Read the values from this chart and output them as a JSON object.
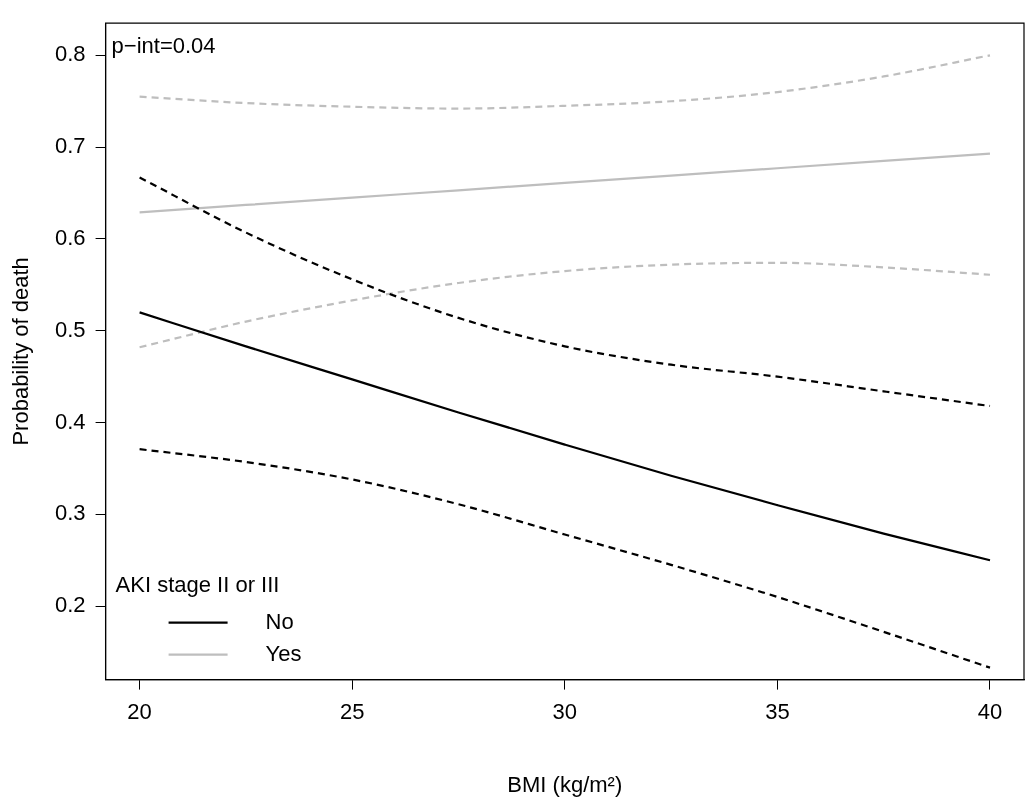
{
  "chart_data": {
    "type": "line",
    "xlabel": "BMI (kg/m²)",
    "ylabel": "Probability of death",
    "legend_title": "AKI stage II or III",
    "annotations": [
      "p−int=0.04"
    ],
    "x": [
      20,
      22.5,
      25,
      27.5,
      30,
      32.5,
      35,
      37.5,
      40
    ],
    "series": [
      {
        "name": "No",
        "color": "#000000",
        "values": [
          0.52,
          0.483,
          0.447,
          0.411,
          0.376,
          0.342,
          0.31,
          0.279,
          0.25
        ]
      },
      {
        "color": "#000000",
        "line_style": "dashed",
        "values": [
          0.667,
          0.607,
          0.556,
          0.514,
          0.483,
          0.463,
          0.45,
          0.434,
          0.418
        ]
      },
      {
        "color": "#000000",
        "line_style": "dashed",
        "values": [
          0.371,
          0.357,
          0.338,
          0.311,
          0.278,
          0.245,
          0.21,
          0.172,
          0.133
        ]
      },
      {
        "name": "Yes",
        "color": "#bebebe",
        "values": [
          0.629,
          0.637,
          0.645,
          0.653,
          0.661,
          0.669,
          0.677,
          0.685,
          0.693
        ]
      },
      {
        "color": "#bebebe",
        "line_style": "dashed",
        "values": [
          0.755,
          0.748,
          0.744,
          0.742,
          0.745,
          0.75,
          0.76,
          0.777,
          0.8
        ]
      },
      {
        "color": "#bebebe",
        "line_style": "dashed",
        "values": [
          0.482,
          0.51,
          0.533,
          0.552,
          0.565,
          0.572,
          0.574,
          0.569,
          0.561
        ]
      }
    ],
    "xlim": [
      19.2,
      40.8
    ],
    "xticks": [
      20,
      25,
      30,
      35,
      40
    ],
    "ylim": [
      0.12,
      0.835
    ],
    "yticks": [
      0.2,
      0.3,
      0.4,
      0.5,
      0.6,
      0.7,
      0.8
    ],
    "grid": false,
    "legend": "bottom left",
    "line_style": "solid",
    "marker": "none"
  }
}
